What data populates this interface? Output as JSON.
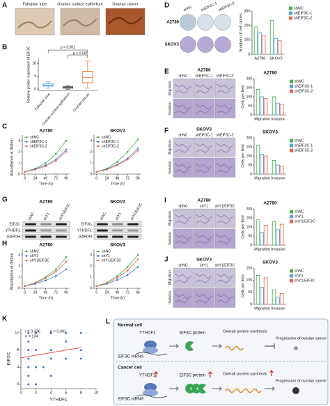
{
  "panel_labels": [
    "A",
    "B",
    "C",
    "D",
    "E",
    "F",
    "G",
    "H",
    "I",
    "J",
    "K",
    "L"
  ],
  "A": {
    "captions": [
      "Fallopian tube",
      "Ovarian surface epithelium",
      "Ovarian cancer"
    ]
  },
  "B": {
    "chart_data": {
      "type": "box",
      "ylabel": "Relative protein expression of EIF3C",
      "categories": [
        "Fallopian tube",
        "Ovarian surface epithelium",
        "Ovarian cancer"
      ],
      "boxes": [
        {
          "min": 0.5,
          "q1": 1.2,
          "median": 1.6,
          "q3": 2.2,
          "max": 3
        },
        {
          "min": 0,
          "q1": 0.4,
          "median": 0.7,
          "q3": 1,
          "max": 1.4
        },
        {
          "min": 0.5,
          "q1": 2.5,
          "median": 4.5,
          "q3": 7,
          "max": 11
        }
      ],
      "colors": [
        "#3b8fd8",
        "#333333",
        "#e8702a"
      ],
      "ylim": [
        -0.5,
        12
      ],
      "yticks": [
        0,
        5,
        10
      ],
      "annotations": [
        "p < 0.001",
        "p < 0.001"
      ]
    }
  },
  "C": {
    "charts": [
      {
        "type": "line",
        "title": "A2780",
        "ylabel": "Absorbance at 450nm",
        "xlabel": "Time (h)",
        "x": [
          0,
          24,
          48,
          72,
          96
        ],
        "xlim": [
          -6,
          104
        ],
        "xticks": [
          0,
          24,
          48,
          72,
          96
        ],
        "ylim": [
          0,
          3.5
        ],
        "yticks": [
          0,
          1,
          2,
          3
        ],
        "series": [
          {
            "name": "shNC",
            "color": "#4caf50",
            "values": [
              0.2,
              0.5,
              1.0,
              1.8,
              3.0
            ]
          },
          {
            "name": "shEIF3C-1",
            "color": "#3b7dd8",
            "values": [
              0.2,
              0.45,
              0.8,
              1.3,
              2.2
            ]
          },
          {
            "name": "shEIF3C-2",
            "color": "#e8674f",
            "values": [
              0.2,
              0.4,
              0.7,
              1.2,
              2.0
            ]
          }
        ]
      },
      {
        "type": "line",
        "title": "SKOV3",
        "xlabel": "Time (h)",
        "x": [
          0,
          24,
          48,
          72,
          96
        ],
        "xlim": [
          -6,
          104
        ],
        "xticks": [
          0,
          24,
          48,
          72,
          96
        ],
        "ylim": [
          0,
          3.5
        ],
        "yticks": [
          0,
          1,
          2,
          3
        ],
        "series": [
          {
            "name": "shNC",
            "color": "#4caf50",
            "values": [
              0.2,
              0.5,
              1.1,
              2.0,
              3.1
            ]
          },
          {
            "name": "shEIF3C-1",
            "color": "#3b7dd8",
            "values": [
              0.2,
              0.45,
              0.85,
              1.4,
              2.3
            ]
          },
          {
            "name": "shEIF3C-2",
            "color": "#e8674f",
            "values": [
              0.2,
              0.4,
              0.8,
              1.3,
              2.1
            ]
          }
        ]
      }
    ]
  },
  "D": {
    "image_columns": [
      "shNC",
      "shEIF3C-1",
      "shEIF3C-2"
    ],
    "image_rows": [
      "A2780",
      "SKOV3"
    ],
    "chart_data": {
      "type": "bar",
      "ylabel": "Numbers of cell clones",
      "categories": [
        "A2780",
        "SKOV3"
      ],
      "ylim": [
        0,
        300
      ],
      "yticks": [
        0,
        100,
        200,
        300
      ],
      "series": [
        {
          "name": "shNC",
          "color": "#4caf50",
          "values": [
            190,
            235
          ]
        },
        {
          "name": "shEIF3C-1",
          "color": "#5aa0dc",
          "values": [
            150,
            110
          ]
        },
        {
          "name": "shEIF3C-2",
          "color": "#e8674f",
          "values": [
            130,
            95
          ]
        }
      ]
    }
  },
  "E": {
    "title": "A2780",
    "image_columns": [
      "shNC",
      "shEIF3C-1",
      "shEIF3C-2"
    ],
    "image_rows": [
      "Migration",
      "Invasion"
    ],
    "chart_data": {
      "type": "bar",
      "title": "A2780",
      "ylabel": "Cells per field",
      "categories": [
        "Migration",
        "Invasion"
      ],
      "ylim": [
        0,
        200
      ],
      "yticks": [
        0,
        50,
        100,
        150,
        200
      ],
      "series": [
        {
          "name": "shNC",
          "color": "#4caf50",
          "values": [
            140,
            100
          ]
        },
        {
          "name": "shEIF3C-1",
          "color": "#5aa0dc",
          "values": [
            100,
            65
          ]
        },
        {
          "name": "shEIF3C-2",
          "color": "#e8674f",
          "values": [
            90,
            60
          ]
        }
      ]
    }
  },
  "F": {
    "title": "SKOV3",
    "image_columns": [
      "shNC",
      "shEIF3C-1",
      "shEIF3C-2"
    ],
    "image_rows": [
      "Migration",
      "Invasion"
    ],
    "chart_data": {
      "type": "bar",
      "title": "SKOV3",
      "ylabel": "Cells per field",
      "categories": [
        "Migration",
        "Invasion"
      ],
      "ylim": [
        0,
        200
      ],
      "yticks": [
        0,
        50,
        100,
        150,
        200
      ],
      "series": [
        {
          "name": "shNC",
          "color": "#4caf50",
          "values": [
            160,
            75
          ]
        },
        {
          "name": "shEIF3C-1",
          "color": "#5aa0dc",
          "values": [
            110,
            50
          ]
        },
        {
          "name": "shEIF3C-2",
          "color": "#e8674f",
          "values": [
            100,
            45
          ]
        }
      ]
    }
  },
  "G": {
    "blots": [
      {
        "title": "A2780",
        "lanes": [
          "shNC",
          "shY1",
          "shY1/EIF3C"
        ],
        "rows": [
          "EIF3C",
          "YTHDF1",
          "GAPDH"
        ]
      },
      {
        "title": "SKOV3",
        "lanes": [
          "shNC",
          "shY1",
          "shY1/EIF3C"
        ],
        "rows": [
          "EIF3C",
          "YTHDF1",
          "GAPDH"
        ]
      }
    ]
  },
  "H": {
    "charts": [
      {
        "type": "line",
        "title": "A2780",
        "ylabel": "Absorbance at 450nm",
        "xlabel": "Time (h)",
        "x": [
          0,
          24,
          48,
          72,
          96
        ],
        "xlim": [
          -6,
          104
        ],
        "xticks": [
          0,
          24,
          48,
          72,
          96
        ],
        "ylim": [
          0,
          3.5
        ],
        "yticks": [
          0,
          1,
          2,
          3
        ],
        "series": [
          {
            "name": "shNC",
            "color": "#4caf50",
            "values": [
              0.2,
              0.5,
              1.0,
              1.7,
              2.8
            ]
          },
          {
            "name": "shY1",
            "color": "#3b7dd8",
            "values": [
              0.2,
              0.4,
              0.7,
              1.1,
              1.7
            ]
          },
          {
            "name": "shY1/EIF3C",
            "color": "#e8674f",
            "values": [
              0.2,
              0.45,
              0.9,
              1.5,
              2.4
            ]
          }
        ]
      },
      {
        "type": "line",
        "title": "SKOV3",
        "xlabel": "Time (h)",
        "x": [
          0,
          24,
          48,
          72,
          96
        ],
        "xlim": [
          -6,
          104
        ],
        "xticks": [
          0,
          24,
          48,
          72,
          96
        ],
        "ylim": [
          0,
          3.5
        ],
        "yticks": [
          0,
          1,
          2,
          3
        ],
        "series": [
          {
            "name": "shNC",
            "color": "#4caf50",
            "values": [
              0.2,
              0.5,
              1.1,
              1.9,
              3.0
            ]
          },
          {
            "name": "shY1",
            "color": "#3b7dd8",
            "values": [
              0.2,
              0.4,
              0.75,
              1.2,
              1.9
            ]
          },
          {
            "name": "shY1/EIF3C",
            "color": "#e8674f",
            "values": [
              0.2,
              0.45,
              0.95,
              1.6,
              2.6
            ]
          }
        ]
      }
    ]
  },
  "I": {
    "title": "A2780",
    "image_columns": [
      "shNC",
      "shY1",
      "shY1/EIF3C"
    ],
    "image_rows": [
      "Migration",
      "Invasion"
    ],
    "chart_data": {
      "type": "bar",
      "title": "A2780",
      "ylabel": "Cells per field",
      "categories": [
        "Migration",
        "Invasion"
      ],
      "ylim": [
        0,
        200
      ],
      "yticks": [
        0,
        50,
        100,
        150,
        200
      ],
      "series": [
        {
          "name": "shNC",
          "color": "#4caf50",
          "values": [
            140,
            130
          ]
        },
        {
          "name": "shY1",
          "color": "#5aa0dc",
          "values": [
            70,
            85
          ]
        },
        {
          "name": "shY1/EIF3C",
          "color": "#e8674f",
          "values": [
            110,
            115
          ]
        }
      ]
    }
  },
  "J": {
    "title": "SKOV3",
    "image_columns": [
      "shNC",
      "shY1",
      "shY1/EIF3C"
    ],
    "image_rows": [
      "Migration",
      "Invasion"
    ],
    "chart_data": {
      "type": "bar",
      "title": "SKOV3",
      "ylabel": "Cells per field",
      "categories": [
        "Migration",
        "Invasion"
      ],
      "ylim": [
        0,
        150
      ],
      "yticks": [
        0,
        50,
        100,
        150
      ],
      "series": [
        {
          "name": "shNC",
          "color": "#4caf50",
          "values": [
            120,
            60
          ]
        },
        {
          "name": "shY1",
          "color": "#5aa0dc",
          "values": [
            70,
            30
          ]
        },
        {
          "name": "shY1/EIF3C",
          "color": "#e8674f",
          "values": [
            110,
            45
          ]
        }
      ]
    }
  },
  "K": {
    "chart_data": {
      "type": "scatter",
      "xlabel": "YTHDF1",
      "ylabel": "EIF3C",
      "annotations": [
        "r = 0.336",
        "p < 0.001",
        "n = 134"
      ],
      "x": [
        1,
        2,
        4,
        6,
        8,
        1,
        6,
        1,
        2,
        4,
        8,
        1,
        4,
        6,
        8,
        1,
        2,
        3,
        1,
        4,
        1,
        2
      ],
      "y": [
        12,
        12,
        12,
        12,
        12,
        10,
        10,
        8,
        8,
        8,
        8,
        6,
        6,
        6,
        6,
        4,
        4,
        4,
        2,
        2,
        0,
        0
      ],
      "color": "#3b7dd8",
      "fit": {
        "x": [
          0,
          8
        ],
        "y": [
          6.2,
          8.6
        ],
        "color": "#e0402a"
      },
      "xlim": [
        0,
        10
      ],
      "xticks": [
        0,
        2,
        4,
        6,
        8,
        10
      ],
      "ylim": [
        -1,
        13
      ],
      "yticks": [
        0,
        4,
        8,
        12
      ]
    }
  },
  "L": {
    "rows": [
      {
        "title": "Normal cell",
        "reader": "YTHDF1",
        "mrna": "EIF3C mRNA",
        "protein": "EIF3C protein",
        "synthesis": "Overall protein synthesis",
        "outcome": "Progression of ovarian cancer"
      },
      {
        "title": "Cancer cell",
        "reader": "YTHDF1",
        "mrna": "EIF3C mRNA",
        "protein": "EIF3C protein",
        "synthesis": "Overall protein synthesis",
        "outcome": "Progression of ovarian cancer"
      }
    ]
  }
}
